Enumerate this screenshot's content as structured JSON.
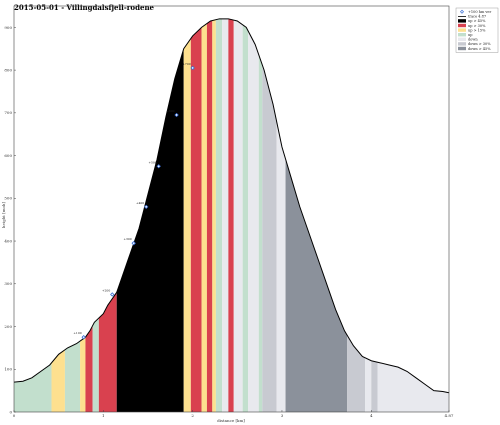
{
  "chart_data": {
    "type": "area",
    "title": "2015-05-01 - Villingdalsfjell-rodene",
    "xlabel": "distance [km]",
    "ylabel": "height [moh]",
    "xlim": [
      0,
      4.87
    ],
    "ylim": [
      0,
      950
    ],
    "x_ticks": [
      0,
      1,
      2,
      3,
      4,
      4.87
    ],
    "x_tick_labels": [
      "0",
      "1",
      "2",
      "3",
      "4",
      "4.87"
    ],
    "y_ticks": [
      0,
      100,
      200,
      300,
      400,
      500,
      600,
      700,
      800,
      900
    ],
    "y_tick_labels": [
      "0",
      "100",
      "200",
      "300",
      "400",
      "500",
      "600",
      "700",
      "800",
      "900"
    ],
    "grid": false,
    "legend_position": "top-right",
    "legend": [
      {
        "key": "marker",
        "label": "+100 hm ver"
      },
      {
        "key": "line",
        "label": "trace 4.87"
      },
      {
        "key": "up_steep",
        "label": "up > 45%"
      },
      {
        "key": "up_med",
        "label": "up > 30%"
      },
      {
        "key": "up_mild",
        "label": "up > 15%"
      },
      {
        "key": "up_flat",
        "label": "up"
      },
      {
        "key": "down",
        "label": "down"
      },
      {
        "key": "down_med",
        "label": "down > 30%"
      },
      {
        "key": "down_steep",
        "label": "down > 45%"
      }
    ],
    "category_colors": {
      "up_flat": "#c2dfcd",
      "up_mild": "#fde08f",
      "up_med": "#d9414f",
      "up_steep": "#000000",
      "down": "#e8e9ee",
      "down_med": "#c8cad1",
      "down_steep": "#8b919b",
      "marker": "#3a6fd6",
      "line": "#000000"
    },
    "profile": {
      "x": [
        0,
        0.1,
        0.2,
        0.3,
        0.4,
        0.5,
        0.6,
        0.7,
        0.8,
        0.85,
        0.9,
        1.0,
        1.05,
        1.1,
        1.15,
        1.2,
        1.3,
        1.4,
        1.5,
        1.6,
        1.7,
        1.8,
        1.9,
        2.0,
        2.1,
        2.2,
        2.3,
        2.4,
        2.5,
        2.6,
        2.7,
        2.8,
        2.9,
        3.0,
        3.1,
        3.2,
        3.3,
        3.4,
        3.5,
        3.6,
        3.7,
        3.8,
        3.9,
        4.0,
        4.1,
        4.2,
        4.3,
        4.4,
        4.5,
        4.6,
        4.7,
        4.8,
        4.87
      ],
      "y": [
        70,
        72,
        80,
        95,
        110,
        135,
        150,
        160,
        175,
        190,
        210,
        230,
        250,
        265,
        280,
        310,
        370,
        430,
        510,
        590,
        690,
        780,
        850,
        880,
        900,
        915,
        920,
        920,
        915,
        900,
        860,
        800,
        720,
        620,
        550,
        480,
        420,
        360,
        300,
        240,
        190,
        155,
        130,
        120,
        115,
        110,
        105,
        95,
        80,
        65,
        50,
        48,
        45
      ]
    },
    "segments": [
      {
        "x0": 0.0,
        "x1": 0.42,
        "category": "up_flat"
      },
      {
        "x0": 0.42,
        "x1": 0.57,
        "category": "up_mild"
      },
      {
        "x0": 0.57,
        "x1": 0.74,
        "category": "up_flat"
      },
      {
        "x0": 0.74,
        "x1": 0.8,
        "category": "up_mild"
      },
      {
        "x0": 0.8,
        "x1": 0.88,
        "category": "up_med"
      },
      {
        "x0": 0.88,
        "x1": 0.95,
        "category": "up_flat"
      },
      {
        "x0": 0.95,
        "x1": 1.15,
        "category": "up_med"
      },
      {
        "x0": 1.15,
        "x1": 1.9,
        "category": "up_steep"
      },
      {
        "x0": 1.9,
        "x1": 1.98,
        "category": "up_mild"
      },
      {
        "x0": 1.98,
        "x1": 2.1,
        "category": "up_med"
      },
      {
        "x0": 2.1,
        "x1": 2.16,
        "category": "up_mild"
      },
      {
        "x0": 2.16,
        "x1": 2.22,
        "category": "up_med"
      },
      {
        "x0": 2.22,
        "x1": 2.26,
        "category": "up_mild"
      },
      {
        "x0": 2.26,
        "x1": 2.33,
        "category": "up_flat"
      },
      {
        "x0": 2.33,
        "x1": 2.4,
        "category": "down"
      },
      {
        "x0": 2.4,
        "x1": 2.46,
        "category": "up_med"
      },
      {
        "x0": 2.46,
        "x1": 2.56,
        "category": "down"
      },
      {
        "x0": 2.56,
        "x1": 2.62,
        "category": "up_flat"
      },
      {
        "x0": 2.62,
        "x1": 2.74,
        "category": "down"
      },
      {
        "x0": 2.74,
        "x1": 2.78,
        "category": "up_flat"
      },
      {
        "x0": 2.78,
        "x1": 2.94,
        "category": "down_med"
      },
      {
        "x0": 2.94,
        "x1": 3.04,
        "category": "down"
      },
      {
        "x0": 3.04,
        "x1": 3.73,
        "category": "down_steep"
      },
      {
        "x0": 3.73,
        "x1": 3.93,
        "category": "down_med"
      },
      {
        "x0": 3.93,
        "x1": 4.0,
        "category": "down"
      },
      {
        "x0": 4.0,
        "x1": 4.07,
        "category": "down_med"
      },
      {
        "x0": 4.07,
        "x1": 4.87,
        "category": "down"
      }
    ],
    "markers": [
      {
        "x": 0.78,
        "y": 175,
        "label": "+100"
      },
      {
        "x": 1.1,
        "y": 275,
        "label": "+200"
      },
      {
        "x": 1.34,
        "y": 395,
        "label": "+300"
      },
      {
        "x": 1.48,
        "y": 480,
        "label": "+400"
      },
      {
        "x": 1.62,
        "y": 575,
        "label": "+500"
      },
      {
        "x": 1.82,
        "y": 695,
        "label": "+600"
      },
      {
        "x": 2.0,
        "y": 805,
        "label": "+700"
      }
    ]
  }
}
